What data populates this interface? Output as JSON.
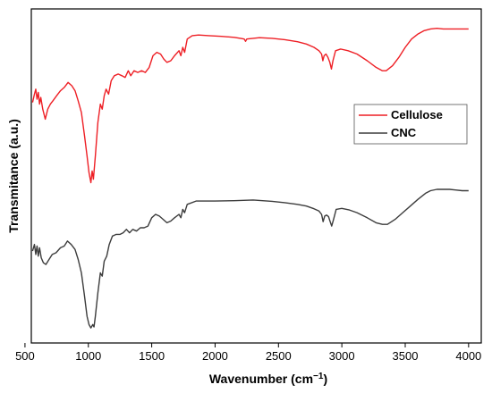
{
  "chart_data": {
    "type": "line",
    "title": "",
    "xlabel": "Wavenumber (cm",
    "xlabel_sup": "−1",
    "xlabel_suffix": ")",
    "ylabel": "Transmitance (a.u.)",
    "xlim": [
      550,
      4100
    ],
    "ylim": [
      0,
      100
    ],
    "x_ticks": [
      500,
      1000,
      1500,
      2000,
      2500,
      3000,
      3500,
      4000
    ],
    "y_ticks_shown": false,
    "grid": false,
    "legend_position": "right-middle",
    "series": [
      {
        "name": "Cellulose",
        "color": "#ee1f25",
        "points": [
          [
            560,
            72
          ],
          [
            575,
            74.5
          ],
          [
            585,
            76
          ],
          [
            595,
            73
          ],
          [
            605,
            75
          ],
          [
            615,
            71.5
          ],
          [
            625,
            73.5
          ],
          [
            640,
            70
          ],
          [
            660,
            67
          ],
          [
            680,
            70
          ],
          [
            700,
            71.5
          ],
          [
            720,
            72.5
          ],
          [
            750,
            74
          ],
          [
            780,
            75.5
          ],
          [
            810,
            76.5
          ],
          [
            840,
            78
          ],
          [
            870,
            77
          ],
          [
            895,
            75.5
          ],
          [
            920,
            72.5
          ],
          [
            945,
            69
          ],
          [
            970,
            62
          ],
          [
            990,
            56
          ],
          [
            1005,
            51
          ],
          [
            1020,
            48
          ],
          [
            1030,
            51.5
          ],
          [
            1040,
            49
          ],
          [
            1055,
            56
          ],
          [
            1075,
            66
          ],
          [
            1095,
            71.5
          ],
          [
            1110,
            70
          ],
          [
            1125,
            74
          ],
          [
            1140,
            76
          ],
          [
            1160,
            74.5
          ],
          [
            1180,
            78.5
          ],
          [
            1205,
            80
          ],
          [
            1235,
            80.5
          ],
          [
            1265,
            80
          ],
          [
            1290,
            79.5
          ],
          [
            1315,
            81.5
          ],
          [
            1335,
            80
          ],
          [
            1360,
            81.5
          ],
          [
            1390,
            81
          ],
          [
            1420,
            81.5
          ],
          [
            1450,
            81
          ],
          [
            1480,
            82.5
          ],
          [
            1510,
            86
          ],
          [
            1540,
            87
          ],
          [
            1570,
            86.5
          ],
          [
            1595,
            85
          ],
          [
            1620,
            84
          ],
          [
            1650,
            84.5
          ],
          [
            1680,
            86
          ],
          [
            1715,
            87.5
          ],
          [
            1730,
            86
          ],
          [
            1745,
            88.5
          ],
          [
            1760,
            87
          ],
          [
            1780,
            91
          ],
          [
            1820,
            92
          ],
          [
            1870,
            92.2
          ],
          [
            1950,
            92
          ],
          [
            2050,
            91.8
          ],
          [
            2150,
            91.5
          ],
          [
            2200,
            91.2
          ],
          [
            2230,
            91
          ],
          [
            2240,
            90.3
          ],
          [
            2250,
            91
          ],
          [
            2350,
            91.4
          ],
          [
            2450,
            91.2
          ],
          [
            2550,
            90.8
          ],
          [
            2650,
            90.2
          ],
          [
            2720,
            89.5
          ],
          [
            2780,
            88.5
          ],
          [
            2820,
            87.5
          ],
          [
            2840,
            86.5
          ],
          [
            2850,
            84.5
          ],
          [
            2860,
            86
          ],
          [
            2875,
            86.5
          ],
          [
            2890,
            85.5
          ],
          [
            2905,
            84
          ],
          [
            2918,
            82
          ],
          [
            2930,
            84.5
          ],
          [
            2950,
            87.5
          ],
          [
            2990,
            88
          ],
          [
            3050,
            87.5
          ],
          [
            3120,
            86.5
          ],
          [
            3200,
            84.5
          ],
          [
            3270,
            82.5
          ],
          [
            3320,
            81.5
          ],
          [
            3350,
            81.5
          ],
          [
            3400,
            83
          ],
          [
            3450,
            85.5
          ],
          [
            3500,
            88.5
          ],
          [
            3550,
            91
          ],
          [
            3600,
            92.5
          ],
          [
            3650,
            93.5
          ],
          [
            3700,
            94
          ],
          [
            3750,
            94.2
          ],
          [
            3800,
            94
          ],
          [
            3900,
            94
          ],
          [
            4000,
            94
          ]
        ]
      },
      {
        "name": "CNC",
        "color": "#3c3c3c",
        "points": [
          [
            560,
            27.5
          ],
          [
            575,
            29.5
          ],
          [
            585,
            26.5
          ],
          [
            595,
            29
          ],
          [
            605,
            26
          ],
          [
            615,
            28.5
          ],
          [
            628,
            25.5
          ],
          [
            645,
            24
          ],
          [
            665,
            23.5
          ],
          [
            690,
            25
          ],
          [
            715,
            26.5
          ],
          [
            745,
            27
          ],
          [
            780,
            28.5
          ],
          [
            810,
            29
          ],
          [
            835,
            30.5
          ],
          [
            865,
            29.5
          ],
          [
            895,
            28
          ],
          [
            920,
            25
          ],
          [
            945,
            21
          ],
          [
            970,
            14
          ],
          [
            990,
            8
          ],
          [
            1005,
            5.5
          ],
          [
            1020,
            4.5
          ],
          [
            1035,
            5.5
          ],
          [
            1045,
            4.8
          ],
          [
            1055,
            8
          ],
          [
            1075,
            15
          ],
          [
            1095,
            21
          ],
          [
            1110,
            20
          ],
          [
            1125,
            24.5
          ],
          [
            1145,
            26
          ],
          [
            1165,
            29.5
          ],
          [
            1190,
            32
          ],
          [
            1220,
            32.5
          ],
          [
            1250,
            32.5
          ],
          [
            1275,
            33
          ],
          [
            1300,
            34
          ],
          [
            1325,
            33
          ],
          [
            1350,
            34
          ],
          [
            1380,
            33.5
          ],
          [
            1410,
            34.5
          ],
          [
            1440,
            34.5
          ],
          [
            1470,
            35
          ],
          [
            1500,
            37.5
          ],
          [
            1530,
            38.5
          ],
          [
            1560,
            38
          ],
          [
            1590,
            37
          ],
          [
            1620,
            36
          ],
          [
            1650,
            36.5
          ],
          [
            1680,
            37.5
          ],
          [
            1715,
            38.5
          ],
          [
            1730,
            37.5
          ],
          [
            1745,
            40
          ],
          [
            1760,
            39
          ],
          [
            1780,
            41.5
          ],
          [
            1850,
            42.5
          ],
          [
            2000,
            42.5
          ],
          [
            2150,
            42.6
          ],
          [
            2300,
            42.8
          ],
          [
            2450,
            42.4
          ],
          [
            2550,
            42
          ],
          [
            2650,
            41.5
          ],
          [
            2720,
            41
          ],
          [
            2780,
            40.2
          ],
          [
            2820,
            39.5
          ],
          [
            2840,
            38.5
          ],
          [
            2852,
            36.3
          ],
          [
            2865,
            38
          ],
          [
            2880,
            38.3
          ],
          [
            2895,
            37.8
          ],
          [
            2908,
            36.3
          ],
          [
            2920,
            35
          ],
          [
            2935,
            37
          ],
          [
            2955,
            40
          ],
          [
            3000,
            40.3
          ],
          [
            3060,
            39.8
          ],
          [
            3120,
            39
          ],
          [
            3200,
            37.5
          ],
          [
            3270,
            36
          ],
          [
            3320,
            35.5
          ],
          [
            3360,
            35.5
          ],
          [
            3420,
            37
          ],
          [
            3480,
            39
          ],
          [
            3540,
            41
          ],
          [
            3600,
            43
          ],
          [
            3660,
            44.8
          ],
          [
            3700,
            45.6
          ],
          [
            3750,
            46
          ],
          [
            3850,
            46
          ],
          [
            3950,
            45.6
          ],
          [
            4000,
            45.6
          ]
        ]
      }
    ]
  }
}
